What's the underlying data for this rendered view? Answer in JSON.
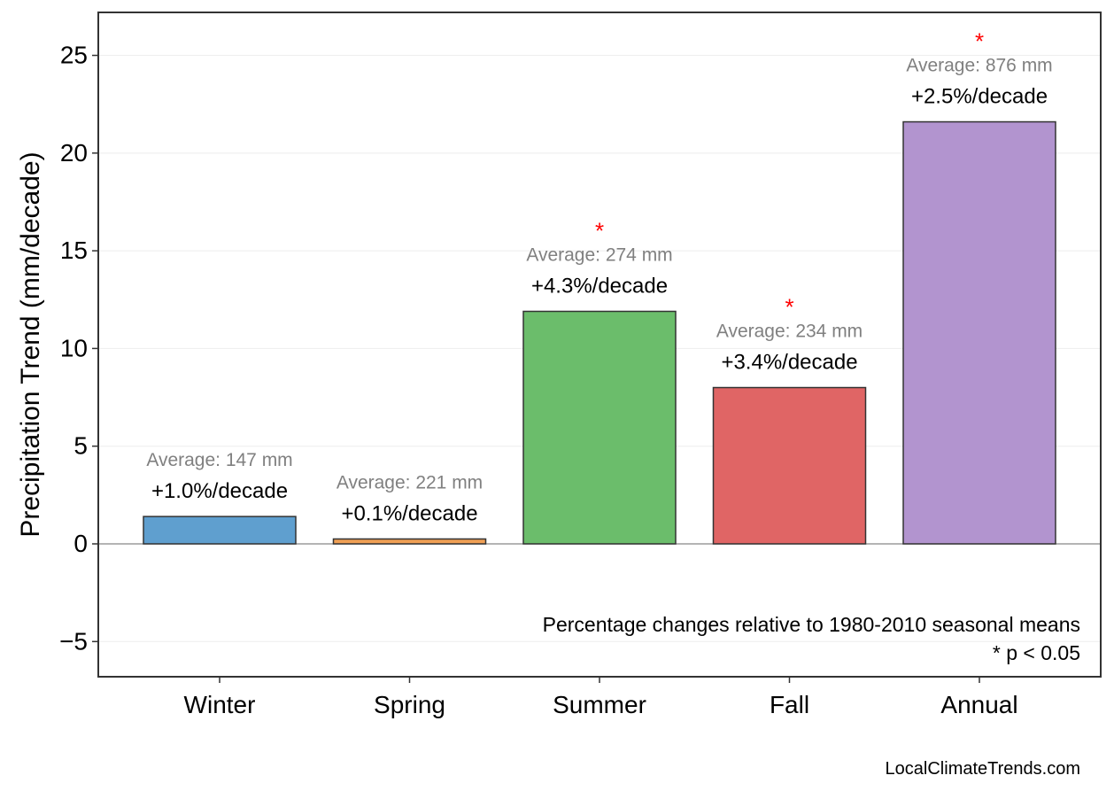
{
  "chart_data": {
    "type": "bar",
    "title": "",
    "xlabel": "",
    "ylabel": "Precipitation Trend (mm/decade)",
    "categories": [
      "Winter",
      "Spring",
      "Summer",
      "Fall",
      "Annual"
    ],
    "values": [
      1.4,
      0.25,
      11.9,
      8.0,
      21.6
    ],
    "colors": [
      "#5f9fcf",
      "#f0a055",
      "#6bbd6b",
      "#e06565",
      "#b294cf"
    ],
    "pct_labels": [
      "+1.0%/decade",
      "+0.1%/decade",
      "+4.3%/decade",
      "+3.4%/decade",
      "+2.5%/decade"
    ],
    "avg_labels": [
      "Average: 147 mm",
      "Average: 221 mm",
      "Average: 274 mm",
      "Average: 234 mm",
      "Average: 876 mm"
    ],
    "significant": [
      false,
      false,
      true,
      true,
      true
    ],
    "significance_marker": "*",
    "significance_color": "#ff0000",
    "ylim": [
      -6.8,
      27.2
    ],
    "yticks": [
      -5,
      0,
      5,
      10,
      15,
      20,
      25
    ],
    "ytick_labels": [
      "−5",
      "0",
      "5",
      "10",
      "15",
      "20",
      "25"
    ],
    "grid": true,
    "zero_line": true,
    "note_line1": "Percentage changes relative to 1980-2010 seasonal means",
    "note_line2": "* p < 0.05"
  },
  "footer": {
    "credit": "LocalClimateTrends.com"
  }
}
